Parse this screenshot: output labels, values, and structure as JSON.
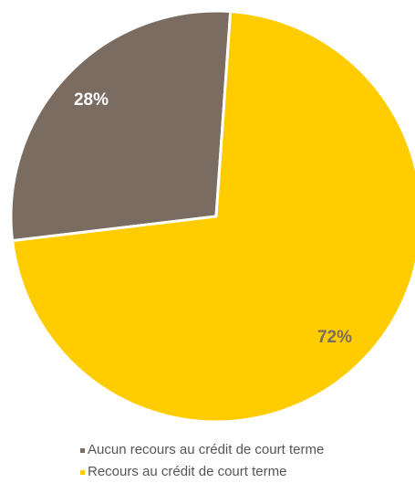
{
  "chart_data": {
    "type": "pie",
    "slices": [
      {
        "name": "Aucun recours au crédit de court terme",
        "value": 28,
        "label": "28%",
        "color": "#7a6c60"
      },
      {
        "name": "Recours au crédit de court terme",
        "value": 72,
        "label": "72%",
        "color": "#ffcc00"
      }
    ],
    "label_colors": [
      "#ffffff",
      "#7a6c60"
    ],
    "legend_position": "bottom"
  }
}
